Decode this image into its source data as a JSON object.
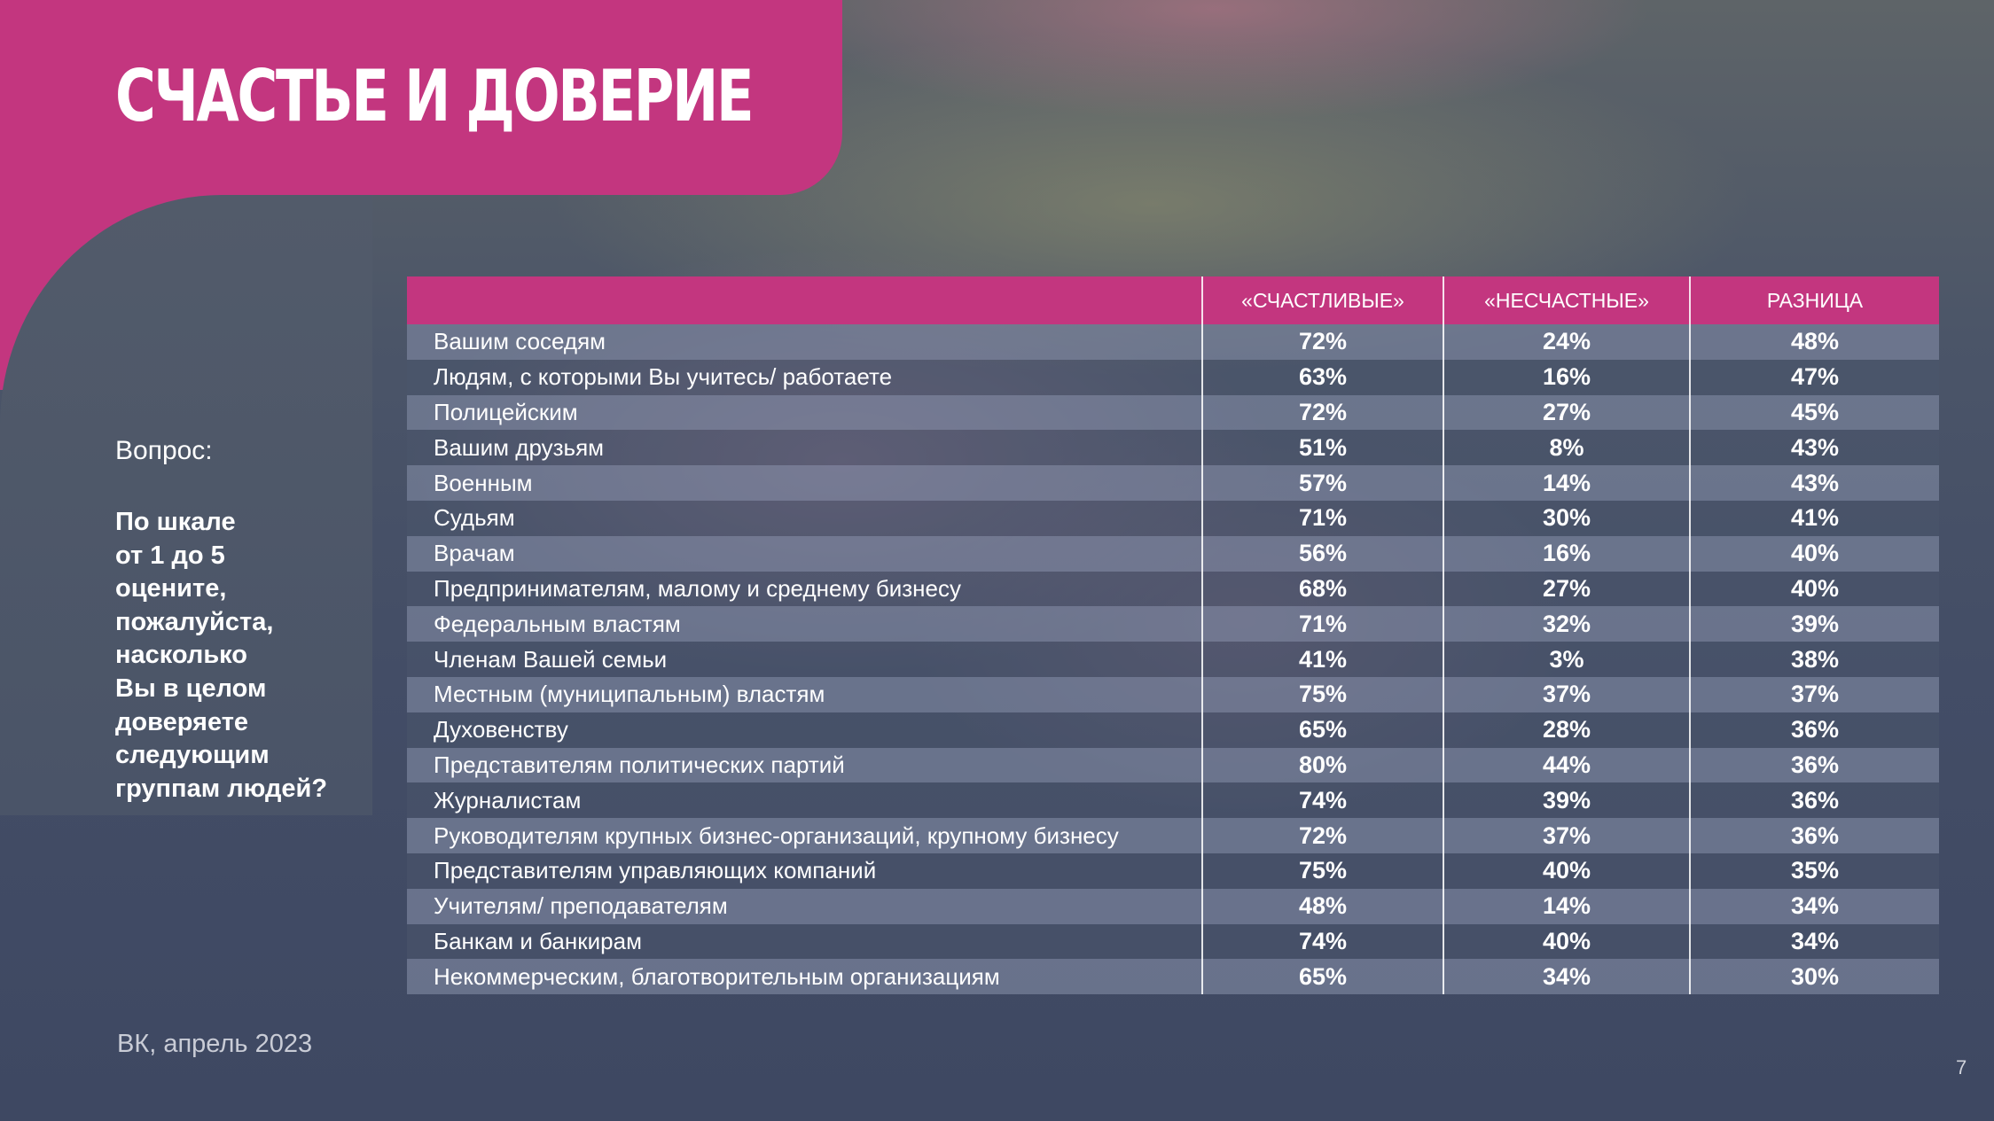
{
  "slide": {
    "title": "СЧАСТЬЕ И ДОВЕРИЕ",
    "question_label": "Вопрос:",
    "question_text": "По шкале\nот 1 до 5\nоцените,\nпожалуйста,\nнасколько\nВы в целом\nдоверяете\nследующим\nгруппам людей?",
    "source": "ВК, апрель 2023",
    "page_number": "7"
  },
  "colors": {
    "accent": "#c3367f",
    "text": "#ffffff",
    "row_light": "#7c86a0",
    "row_dark": "#4b556c"
  },
  "chart_data": {
    "type": "table",
    "columns": [
      "",
      "«СЧАСТЛИВЫЕ»",
      "«НЕСЧАСТНЫЕ»",
      "РАЗНИЦА"
    ],
    "rows": [
      {
        "label": "Вашим соседям",
        "happy": "72%",
        "unhappy": "24%",
        "diff": "48%"
      },
      {
        "label": "Людям, с которыми Вы учитесь/ работаете",
        "happy": "63%",
        "unhappy": "16%",
        "diff": "47%"
      },
      {
        "label": "Полицейским",
        "happy": "72%",
        "unhappy": "27%",
        "diff": "45%"
      },
      {
        "label": "Вашим друзьям",
        "happy": "51%",
        "unhappy": "8%",
        "diff": "43%"
      },
      {
        "label": "Военным",
        "happy": "57%",
        "unhappy": "14%",
        "diff": "43%"
      },
      {
        "label": "Судьям",
        "happy": "71%",
        "unhappy": "30%",
        "diff": "41%"
      },
      {
        "label": "Врачам",
        "happy": "56%",
        "unhappy": "16%",
        "diff": "40%"
      },
      {
        "label": "Предпринимателям, малому и среднему бизнесу",
        "happy": "68%",
        "unhappy": "27%",
        "diff": "40%"
      },
      {
        "label": "Федеральным властям",
        "happy": "71%",
        "unhappy": "32%",
        "diff": "39%"
      },
      {
        "label": "Членам Вашей семьи",
        "happy": "41%",
        "unhappy": "3%",
        "diff": "38%"
      },
      {
        "label": "Местным (муниципальным) властям",
        "happy": "75%",
        "unhappy": "37%",
        "diff": "37%"
      },
      {
        "label": "Духовенству",
        "happy": "65%",
        "unhappy": "28%",
        "diff": "36%"
      },
      {
        "label": "Представителям политических партий",
        "happy": "80%",
        "unhappy": "44%",
        "diff": "36%"
      },
      {
        "label": "Журналистам",
        "happy": "74%",
        "unhappy": "39%",
        "diff": "36%"
      },
      {
        "label": "Руководителям крупных бизнес-организаций, крупному бизнесу",
        "happy": "72%",
        "unhappy": "37%",
        "diff": "36%"
      },
      {
        "label": "Представителям управляющих компаний",
        "happy": "75%",
        "unhappy": "40%",
        "diff": "35%"
      },
      {
        "label": "Учителям/ преподавателям",
        "happy": "48%",
        "unhappy": "14%",
        "diff": "34%"
      },
      {
        "label": "Банкам и банкирам",
        "happy": "74%",
        "unhappy": "40%",
        "diff": "34%"
      },
      {
        "label": "Некоммерческим, благотворительным организациям",
        "happy": "65%",
        "unhappy": "34%",
        "diff": "30%"
      }
    ]
  }
}
